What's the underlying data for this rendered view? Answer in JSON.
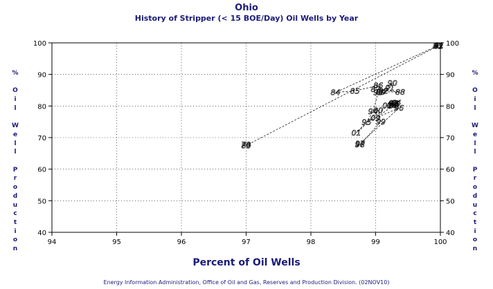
{
  "chart_data": {
    "type": "scatter",
    "title": "Ohio",
    "subtitle": "History of Stripper (< 15 BOE/Day) Oil Wells by Year",
    "xlabel": "Percent of Oil Wells",
    "ylabel": "% Oil Well Production",
    "footer": "Energy Information Administration, Office of Oil and Gas, Reserves and Production Division. (02NOV10)",
    "xlim": [
      94,
      100
    ],
    "ylim": [
      40,
      100
    ],
    "x_ticks": [
      "94",
      "95",
      "96",
      "97",
      "98",
      "99",
      "100"
    ],
    "y_ticks": [
      "40",
      "50",
      "60",
      "70",
      "80",
      "90",
      "100"
    ],
    "grid": true,
    "point_labels_are_years": true,
    "points": [
      {
        "label": "79",
        "x": 97.0,
        "y": 67.8
      },
      {
        "label": "80",
        "x": 97.0,
        "y": 67.5
      },
      {
        "label": "81",
        "x": 99.98,
        "y": 99.2
      },
      {
        "label": "82",
        "x": 99.97,
        "y": 99.0
      },
      {
        "label": "83",
        "x": 99.96,
        "y": 99.1
      },
      {
        "label": "84",
        "x": 98.38,
        "y": 84.3
      },
      {
        "label": "85",
        "x": 98.68,
        "y": 84.8
      },
      {
        "label": "86",
        "x": 99.04,
        "y": 86.5
      },
      {
        "label": "87",
        "x": 99.0,
        "y": 85.3
      },
      {
        "label": "88",
        "x": 99.38,
        "y": 84.4
      },
      {
        "label": "89",
        "x": 99.08,
        "y": 84.5
      },
      {
        "label": "90",
        "x": 99.26,
        "y": 87.3
      },
      {
        "label": "91",
        "x": 99.22,
        "y": 85.8
      },
      {
        "label": "92",
        "x": 99.12,
        "y": 84.8
      },
      {
        "label": "93",
        "x": 99.04,
        "y": 84.3
      },
      {
        "label": "94",
        "x": 98.96,
        "y": 78.3
      },
      {
        "label": "95",
        "x": 98.86,
        "y": 74.9
      },
      {
        "label": "96",
        "x": 99.36,
        "y": 79.4
      },
      {
        "label": "97",
        "x": 98.76,
        "y": 68.1
      },
      {
        "label": "98",
        "x": 98.76,
        "y": 67.8
      },
      {
        "label": "99",
        "x": 99.08,
        "y": 75.0
      },
      {
        "label": "00",
        "x": 99.04,
        "y": 78.6
      },
      {
        "label": "01",
        "x": 98.7,
        "y": 71.5
      },
      {
        "label": "02",
        "x": 99.18,
        "y": 80.2
      },
      {
        "label": "03",
        "x": 99.28,
        "y": 81.0
      },
      {
        "label": "04",
        "x": 99.32,
        "y": 81.1
      },
      {
        "label": "05",
        "x": 99.3,
        "y": 80.6
      },
      {
        "label": "06",
        "x": 99.25,
        "y": 80.3
      },
      {
        "label": "07",
        "x": 99.27,
        "y": 80.8
      },
      {
        "label": "08",
        "x": 99.28,
        "y": 80.2
      },
      {
        "label": "09",
        "x": 99.0,
        "y": 76.2
      }
    ],
    "line_color": "#000000",
    "text_color": "#1a1a7a",
    "line_style": "dashed"
  }
}
